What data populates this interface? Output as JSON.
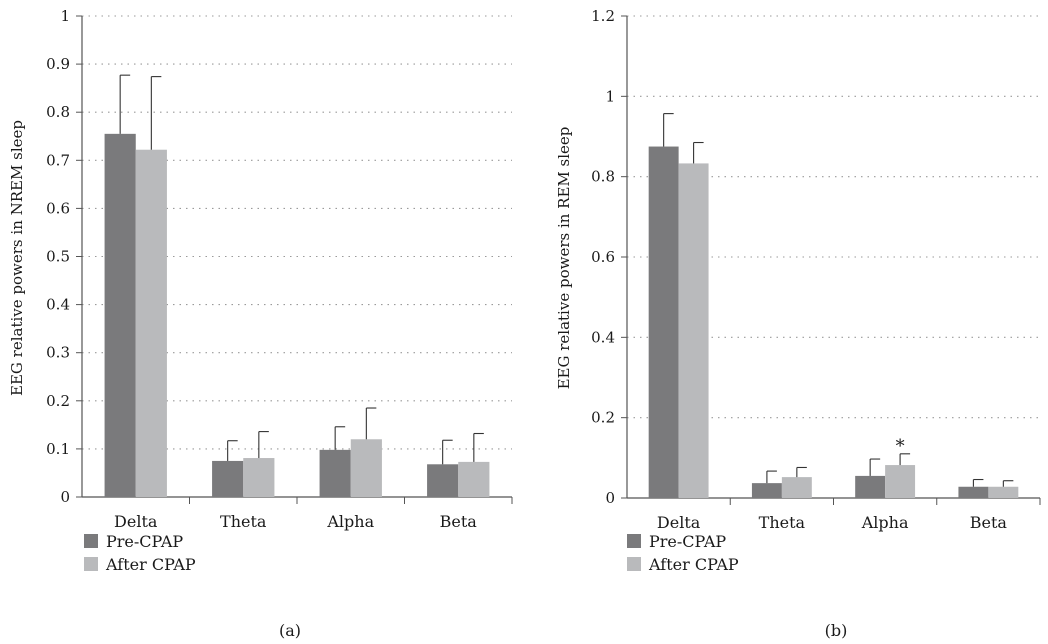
{
  "colors": {
    "pre": "#7a7a7c",
    "after": "#b9babc",
    "axis": "#555555",
    "grid": "#9a9a9a",
    "error": "#333333"
  },
  "chart_data": [
    {
      "type": "bar",
      "caption": "(a)",
      "ylabel": "EEG relative powers in NREM sleep",
      "ylim": [
        0,
        1
      ],
      "yticks": [
        0,
        0.1,
        0.2,
        0.3,
        0.4,
        0.5,
        0.6,
        0.7,
        0.8,
        0.9,
        1
      ],
      "ytick_labels": [
        "0",
        "0.1",
        "0.2",
        "0.3",
        "0.4",
        "0.5",
        "0.6",
        "0.7",
        "0.8",
        "0.9",
        "1"
      ],
      "categories": [
        "Delta",
        "Theta",
        "Alpha",
        "Beta"
      ],
      "grid": "dotted horizontal",
      "legend_position": "bottom-left",
      "series": [
        {
          "name": "Pre-CPAP",
          "values": [
            0.755,
            0.075,
            0.098,
            0.068
          ],
          "errors": [
            0.122,
            0.042,
            0.048,
            0.05
          ]
        },
        {
          "name": "After CPAP",
          "values": [
            0.722,
            0.081,
            0.12,
            0.073
          ],
          "errors": [
            0.152,
            0.055,
            0.065,
            0.059
          ]
        }
      ],
      "annotations": []
    },
    {
      "type": "bar",
      "caption": "(b)",
      "ylabel": "EEG relative powers in REM sleep",
      "ylim": [
        0,
        1.2
      ],
      "yticks": [
        0,
        0.2,
        0.4,
        0.6,
        0.8,
        1,
        1.2
      ],
      "ytick_labels": [
        "0",
        "0.2",
        "0.4",
        "0.6",
        "0.8",
        "1",
        "1.2"
      ],
      "categories": [
        "Delta",
        "Theta",
        "Alpha",
        "Beta"
      ],
      "grid": "dotted horizontal",
      "legend_position": "bottom-left",
      "series": [
        {
          "name": "Pre-CPAP",
          "values": [
            0.875,
            0.037,
            0.055,
            0.028
          ],
          "errors": [
            0.082,
            0.03,
            0.042,
            0.018
          ]
        },
        {
          "name": "After CPAP",
          "values": [
            0.833,
            0.052,
            0.082,
            0.028
          ],
          "errors": [
            0.052,
            0.024,
            0.028,
            0.015
          ]
        }
      ],
      "annotations": [
        {
          "text": "*",
          "category": "Alpha",
          "series": 1
        }
      ]
    }
  ]
}
